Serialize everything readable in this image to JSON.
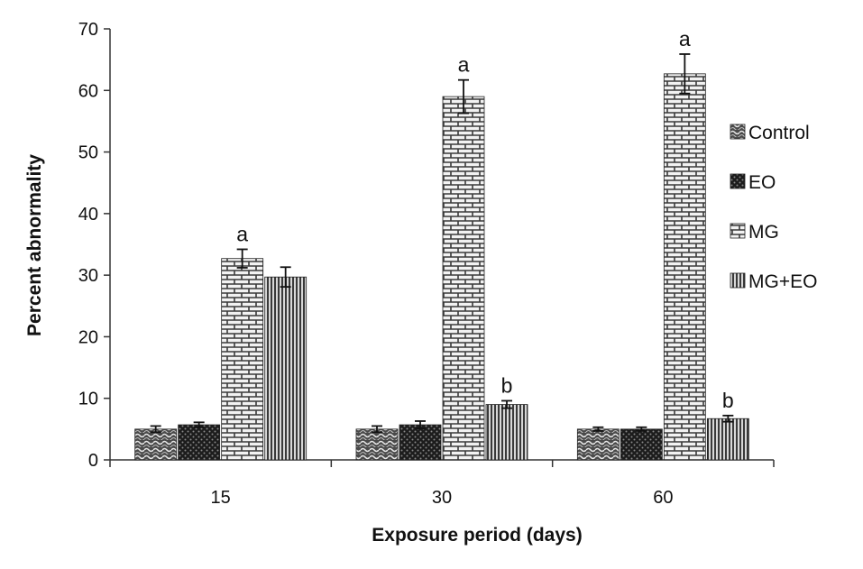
{
  "chart_data": {
    "type": "bar",
    "title": "",
    "xlabel": "Exposure period (days)",
    "ylabel": "Percent abnormality",
    "ylim": [
      0,
      70
    ],
    "yticks": [
      0,
      10,
      20,
      30,
      40,
      50,
      60,
      70
    ],
    "categories": [
      "15",
      "30",
      "60"
    ],
    "series": [
      {
        "name": "Control",
        "values": [
          5.0,
          5.0,
          5.0
        ],
        "errors": [
          0.5,
          0.5,
          0.3
        ],
        "labels": [
          "",
          "",
          ""
        ]
      },
      {
        "name": "EO",
        "values": [
          5.7,
          5.7,
          5.0
        ],
        "errors": [
          0.4,
          0.6,
          0.3
        ],
        "labels": [
          "",
          "",
          ""
        ]
      },
      {
        "name": "MG",
        "values": [
          32.7,
          59.0,
          62.7
        ],
        "errors": [
          1.5,
          2.7,
          3.2
        ],
        "labels": [
          "a",
          "a",
          "a"
        ]
      },
      {
        "name": "MG+EO",
        "values": [
          29.7,
          9.0,
          6.7
        ],
        "errors": [
          1.6,
          0.6,
          0.5
        ],
        "labels": [
          "",
          "b",
          "b"
        ]
      }
    ],
    "legend_position": "right"
  }
}
